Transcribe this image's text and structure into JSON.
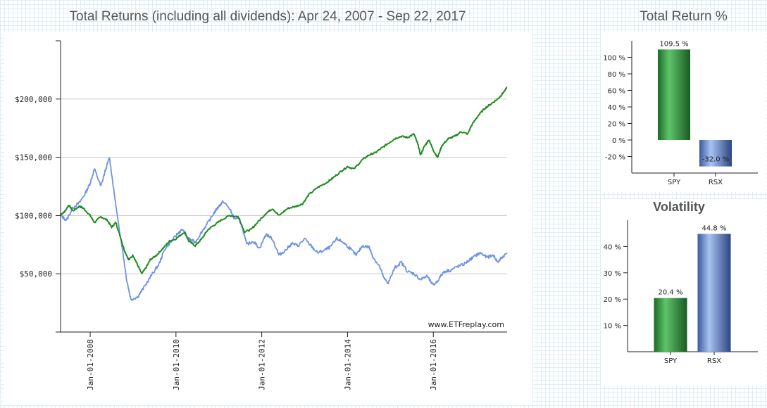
{
  "titles": {
    "main": "Total Returns (including all dividends): Apr 24, 2007 - Sep 22, 2017",
    "total_return": "Total Return %",
    "volatility": "Volatility"
  },
  "watermark": "www.ETFreplay.com",
  "chart_data": [
    {
      "type": "line",
      "title": "Total Returns (including all dividends): Apr 24, 2007 - Sep 22, 2017",
      "xlabel": "",
      "ylabel": "",
      "x_range": [
        2007.31,
        2017.72
      ],
      "ylim": [
        0,
        250000
      ],
      "y_ticks": [
        50000,
        100000,
        150000,
        200000
      ],
      "y_tick_labels": [
        "$50,000",
        "$100,000",
        "$150,000",
        "$200,000"
      ],
      "x_ticks": [
        2008,
        2010,
        2012,
        2014,
        2016
      ],
      "x_tick_labels": [
        "Jan-01-2008",
        "Jan-01-2010",
        "Jan-01-2012",
        "Jan-01-2014",
        "Jan-01-2016"
      ],
      "grid": "horizontal",
      "series": [
        {
          "name": "RSX",
          "color": "#6f93e3",
          "points": [
            [
              2007.31,
              100000
            ],
            [
              2007.45,
              96000
            ],
            [
              2007.6,
              107000
            ],
            [
              2007.75,
              111000
            ],
            [
              2007.9,
              120000
            ],
            [
              2008.0,
              128000
            ],
            [
              2008.1,
              140000
            ],
            [
              2008.25,
              125000
            ],
            [
              2008.35,
              138000
            ],
            [
              2008.45,
              150000
            ],
            [
              2008.55,
              122000
            ],
            [
              2008.65,
              95000
            ],
            [
              2008.75,
              72000
            ],
            [
              2008.85,
              45000
            ],
            [
              2008.95,
              28000
            ],
            [
              2009.1,
              30000
            ],
            [
              2009.25,
              38000
            ],
            [
              2009.45,
              50000
            ],
            [
              2009.6,
              58000
            ],
            [
              2009.75,
              72000
            ],
            [
              2009.9,
              78000
            ],
            [
              2010.05,
              85000
            ],
            [
              2010.15,
              88000
            ],
            [
              2010.3,
              80000
            ],
            [
              2010.45,
              77000
            ],
            [
              2010.6,
              86000
            ],
            [
              2010.75,
              94000
            ],
            [
              2010.9,
              103000
            ],
            [
              2011.0,
              108000
            ],
            [
              2011.1,
              112000
            ],
            [
              2011.25,
              106000
            ],
            [
              2011.35,
              98000
            ],
            [
              2011.5,
              96000
            ],
            [
              2011.65,
              75000
            ],
            [
              2011.8,
              78000
            ],
            [
              2011.95,
              72000
            ],
            [
              2012.1,
              84000
            ],
            [
              2012.25,
              80000
            ],
            [
              2012.4,
              66000
            ],
            [
              2012.55,
              70000
            ],
            [
              2012.7,
              76000
            ],
            [
              2012.85,
              74000
            ],
            [
              2013.0,
              80000
            ],
            [
              2013.15,
              74000
            ],
            [
              2013.3,
              68000
            ],
            [
              2013.45,
              70000
            ],
            [
              2013.6,
              73000
            ],
            [
              2013.75,
              80000
            ],
            [
              2013.9,
              77000
            ],
            [
              2014.05,
              72000
            ],
            [
              2014.2,
              66000
            ],
            [
              2014.35,
              74000
            ],
            [
              2014.5,
              73000
            ],
            [
              2014.6,
              64000
            ],
            [
              2014.75,
              56000
            ],
            [
              2014.85,
              46000
            ],
            [
              2014.95,
              42000
            ],
            [
              2015.1,
              55000
            ],
            [
              2015.25,
              60000
            ],
            [
              2015.4,
              52000
            ],
            [
              2015.55,
              50000
            ],
            [
              2015.7,
              45000
            ],
            [
              2015.85,
              48000
            ],
            [
              2016.0,
              40000
            ],
            [
              2016.1,
              44000
            ],
            [
              2016.25,
              52000
            ],
            [
              2016.4,
              53000
            ],
            [
              2016.55,
              56000
            ],
            [
              2016.7,
              58000
            ],
            [
              2016.85,
              62000
            ],
            [
              2017.0,
              66000
            ],
            [
              2017.1,
              68000
            ],
            [
              2017.25,
              64000
            ],
            [
              2017.4,
              66000
            ],
            [
              2017.5,
              60000
            ],
            [
              2017.6,
              64000
            ],
            [
              2017.72,
              68000
            ]
          ]
        },
        {
          "name": "SPY",
          "color": "#1f8a1f",
          "points": [
            [
              2007.31,
              101000
            ],
            [
              2007.4,
              103000
            ],
            [
              2007.5,
              109000
            ],
            [
              2007.6,
              104000
            ],
            [
              2007.75,
              108000
            ],
            [
              2007.85,
              106000
            ],
            [
              2008.0,
              100000
            ],
            [
              2008.1,
              94000
            ],
            [
              2008.25,
              99000
            ],
            [
              2008.4,
              96000
            ],
            [
              2008.5,
              90000
            ],
            [
              2008.6,
              94000
            ],
            [
              2008.7,
              82000
            ],
            [
              2008.8,
              70000
            ],
            [
              2008.9,
              62000
            ],
            [
              2009.0,
              66000
            ],
            [
              2009.1,
              58000
            ],
            [
              2009.2,
              50000
            ],
            [
              2009.3,
              55000
            ],
            [
              2009.4,
              62000
            ],
            [
              2009.55,
              66000
            ],
            [
              2009.7,
              72000
            ],
            [
              2009.85,
              78000
            ],
            [
              2010.0,
              80000
            ],
            [
              2010.2,
              86000
            ],
            [
              2010.3,
              78000
            ],
            [
              2010.45,
              74000
            ],
            [
              2010.6,
              80000
            ],
            [
              2010.75,
              88000
            ],
            [
              2010.9,
              92000
            ],
            [
              2011.05,
              96000
            ],
            [
              2011.25,
              100000
            ],
            [
              2011.45,
              99000
            ],
            [
              2011.6,
              86000
            ],
            [
              2011.75,
              88000
            ],
            [
              2011.9,
              94000
            ],
            [
              2012.1,
              102000
            ],
            [
              2012.25,
              106000
            ],
            [
              2012.4,
              100000
            ],
            [
              2012.6,
              106000
            ],
            [
              2012.8,
              108000
            ],
            [
              2012.95,
              110000
            ],
            [
              2013.1,
              118000
            ],
            [
              2013.3,
              124000
            ],
            [
              2013.5,
              128000
            ],
            [
              2013.65,
              132000
            ],
            [
              2013.85,
              138000
            ],
            [
              2014.0,
              142000
            ],
            [
              2014.15,
              140000
            ],
            [
              2014.35,
              148000
            ],
            [
              2014.5,
              152000
            ],
            [
              2014.65,
              154000
            ],
            [
              2014.8,
              158000
            ],
            [
              2014.95,
              162000
            ],
            [
              2015.1,
              166000
            ],
            [
              2015.25,
              168000
            ],
            [
              2015.4,
              167000
            ],
            [
              2015.55,
              170000
            ],
            [
              2015.65,
              160000
            ],
            [
              2015.7,
              152000
            ],
            [
              2015.8,
              160000
            ],
            [
              2015.9,
              165000
            ],
            [
              2016.0,
              156000
            ],
            [
              2016.1,
              150000
            ],
            [
              2016.2,
              160000
            ],
            [
              2016.35,
              166000
            ],
            [
              2016.5,
              168000
            ],
            [
              2016.65,
              172000
            ],
            [
              2016.8,
              170000
            ],
            [
              2016.9,
              178000
            ],
            [
              2017.05,
              186000
            ],
            [
              2017.2,
              192000
            ],
            [
              2017.35,
              196000
            ],
            [
              2017.5,
              200000
            ],
            [
              2017.6,
              204000
            ],
            [
              2017.72,
              210000
            ]
          ]
        }
      ]
    },
    {
      "type": "bar",
      "title": "Total Return %",
      "categories": [
        "SPY",
        "RSX"
      ],
      "values": [
        109.5,
        -32.0
      ],
      "value_labels": [
        "109.5 %",
        "-32.0 %"
      ],
      "ylim": [
        -40,
        120
      ],
      "y_ticks": [
        -20,
        0,
        20,
        40,
        60,
        80,
        100
      ],
      "y_tick_labels": [
        "-20 %",
        "0 %",
        "20 %",
        "40 %",
        "60 %",
        "80 %",
        "100 %"
      ],
      "colors": [
        "#2e8b3a",
        "#5e7fc2"
      ]
    },
    {
      "type": "bar",
      "title": "Volatility",
      "categories": [
        "SPY",
        "RSX"
      ],
      "values": [
        20.4,
        44.8
      ],
      "value_labels": [
        "20.4 %",
        "44.8 %"
      ],
      "ylim": [
        0,
        50
      ],
      "y_ticks": [
        10,
        20,
        30,
        40
      ],
      "y_tick_labels": [
        "10 %",
        "20 %",
        "30 %",
        "40 %"
      ],
      "colors": [
        "#2e8b3a",
        "#5e7fc2"
      ]
    }
  ]
}
